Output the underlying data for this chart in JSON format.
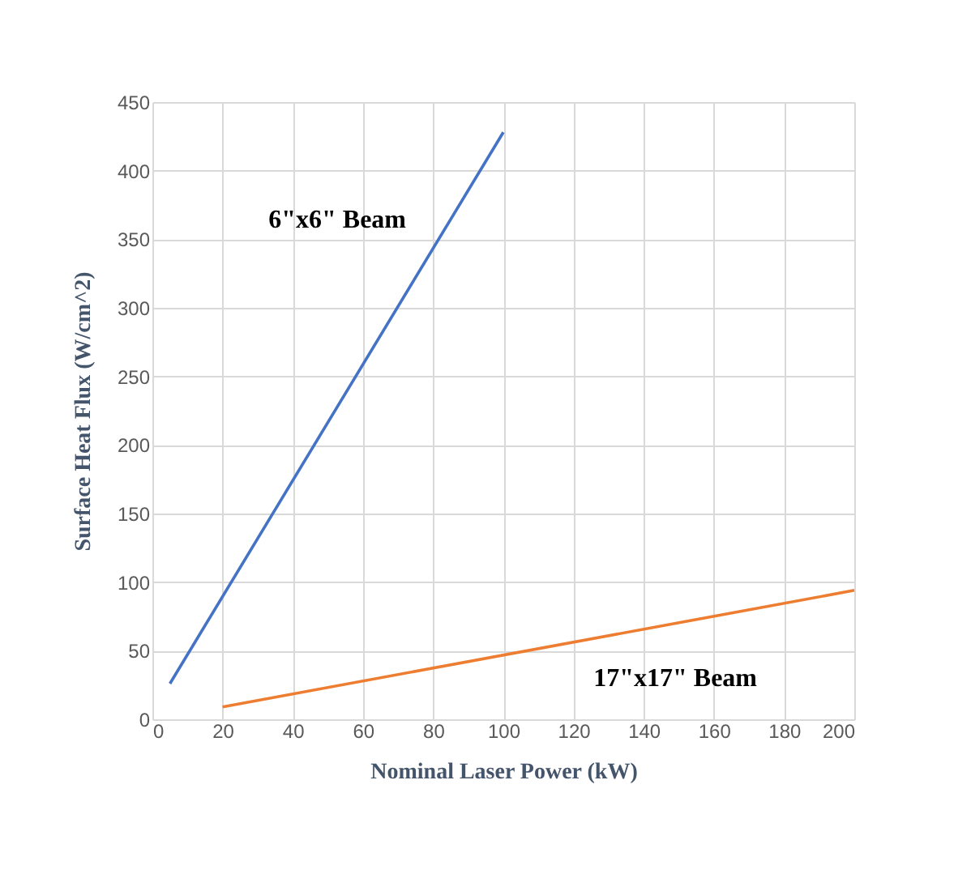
{
  "chart_data": {
    "type": "line",
    "xlabel": "Nominal Laser Power (kW)",
    "ylabel": "Surface Heat Flux (W/cm^2)",
    "series": [
      {
        "name": "6\"x6\" Beam",
        "color": "#4472c4",
        "x": [
          5,
          100
        ],
        "values": [
          26,
          428
        ]
      },
      {
        "name": "17\"x17\" Beam",
        "color": "#ed7d31",
        "x": [
          20,
          200
        ],
        "values": [
          9,
          94
        ]
      }
    ],
    "xlim": [
      0,
      200
    ],
    "xticks": [
      0,
      20,
      40,
      60,
      80,
      100,
      120,
      140,
      160,
      180,
      200
    ],
    "ylim": [
      0,
      450
    ],
    "yticks": [
      0,
      50,
      100,
      150,
      200,
      250,
      300,
      350,
      400,
      450
    ],
    "grid": true,
    "legend": false,
    "marker": "none",
    "line_style": "solid"
  }
}
